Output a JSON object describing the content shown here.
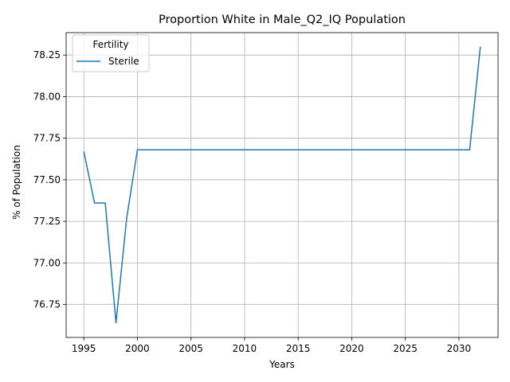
{
  "chart_data": {
    "type": "line",
    "title": "Proportion White in Male_Q2_IQ Population",
    "xlabel": "Years",
    "ylabel": "% of Population",
    "xlim": [
      1993.35,
      2033.65
    ],
    "ylim": [
      76.552,
      78.385
    ],
    "xticks": [
      1995,
      2000,
      2005,
      2010,
      2015,
      2020,
      2025,
      2030
    ],
    "yticks": [
      76.75,
      77.0,
      77.25,
      77.5,
      77.75,
      78.0,
      78.25
    ],
    "ytick_labels": [
      "76.75",
      "77.00",
      "77.25",
      "77.50",
      "77.75",
      "78.00",
      "78.25"
    ],
    "grid": true,
    "legend": {
      "title": "Fertility",
      "position": "top-left"
    },
    "series": [
      {
        "name": "Sterile",
        "color": "#1f77b4",
        "x": [
          1995,
          1996,
          1997,
          1998,
          1999,
          2000,
          2001,
          2002,
          2003,
          2004,
          2005,
          2006,
          2007,
          2008,
          2009,
          2010,
          2011,
          2012,
          2013,
          2014,
          2015,
          2016,
          2017,
          2018,
          2019,
          2020,
          2021,
          2022,
          2023,
          2024,
          2025,
          2026,
          2027,
          2028,
          2029,
          2030,
          2031,
          2032
        ],
        "y": [
          77.67,
          77.36,
          77.36,
          76.64,
          77.27,
          77.68,
          77.68,
          77.68,
          77.68,
          77.68,
          77.68,
          77.68,
          77.68,
          77.68,
          77.68,
          77.68,
          77.68,
          77.68,
          77.68,
          77.68,
          77.68,
          77.68,
          77.68,
          77.68,
          77.68,
          77.68,
          77.68,
          77.68,
          77.68,
          77.68,
          77.68,
          77.68,
          77.68,
          77.68,
          77.68,
          77.68,
          77.68,
          78.3
        ]
      }
    ]
  }
}
